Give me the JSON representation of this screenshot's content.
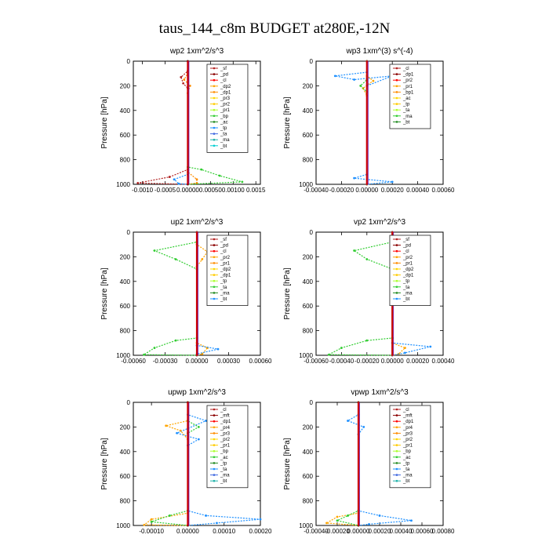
{
  "title": "taus_144_c8m  BUDGET at280E,-12N",
  "chart_data": [
    {
      "type": "line",
      "title": "wp2   1xm^2/s^3",
      "ylabel": "Pressure [hPa]",
      "xlim": [
        -0.0012,
        0.0016
      ],
      "ylim": [
        1000,
        0
      ],
      "xticks": [
        "-0.0010",
        "-0.0005",
        "0.00000",
        "0.00050",
        "0.00100",
        "0.0015"
      ],
      "xtick_values": [
        -0.001,
        -0.0005,
        0,
        0.0005,
        0.001,
        0.0015
      ],
      "yticks": [
        0,
        200,
        400,
        600,
        800,
        1000
      ],
      "legend_position": "top-right",
      "legend": [
        "_sf",
        "_pd",
        "_cl",
        "_dp2",
        "_dp1",
        "_pr3",
        "_pr2",
        "_pr1",
        "_bp",
        "_ac",
        "_tp",
        "_ta",
        "_ma",
        "_bt"
      ],
      "series": [
        {
          "name": "_pd",
          "color": "#b22222",
          "points": [
            [
              0,
              0
            ],
            [
              0,
              80
            ],
            [
              -0.00015,
              130
            ],
            [
              -0.0001,
              180
            ],
            [
              0,
              220
            ],
            [
              0,
              880
            ],
            [
              -0.0004,
              940
            ],
            [
              -0.0011,
              990
            ],
            [
              0,
              1000
            ]
          ]
        },
        {
          "name": "_dp2",
          "color": "#ff8c00",
          "points": [
            [
              0,
              0
            ],
            [
              0,
              100
            ],
            [
              -8e-05,
              150
            ],
            [
              5e-05,
              200
            ],
            [
              0,
              260
            ],
            [
              0,
              900
            ],
            [
              0.0002,
              960
            ],
            [
              0.0002,
              990
            ],
            [
              0,
              1000
            ]
          ]
        },
        {
          "name": "_bp",
          "color": "#32cd32",
          "points": [
            [
              0,
              0
            ],
            [
              0,
              860
            ],
            [
              0.0003,
              880
            ],
            [
              0.0007,
              930
            ],
            [
              0.0012,
              980
            ],
            [
              0,
              1000
            ]
          ]
        },
        {
          "name": "_tp",
          "color": "#1e90ff",
          "points": [
            [
              0,
              0
            ],
            [
              0,
              920
            ],
            [
              -0.0003,
              960
            ],
            [
              -0.0002,
              995
            ],
            [
              0,
              1000
            ]
          ]
        },
        {
          "name": "_cl",
          "color": "#8b0000",
          "points": [
            [
              0,
              0
            ],
            [
              0,
              1000
            ]
          ]
        }
      ]
    },
    {
      "type": "line",
      "title": "wp3   1xm^(3) s^(-4)",
      "ylabel": "Pressure [hPa]",
      "xlim": [
        -0.0004,
        0.0006
      ],
      "ylim": [
        1000,
        0
      ],
      "xticks": [
        "-0.00040",
        "-0.00020",
        "0.00000",
        "0.00020",
        "0.00040",
        "0.00060"
      ],
      "xtick_values": [
        -0.0004,
        -0.0002,
        0,
        0.0002,
        0.0004,
        0.0006
      ],
      "yticks": [
        0,
        200,
        400,
        600,
        800,
        1000
      ],
      "legend_position": "top-right",
      "legend": [
        "_cl",
        "_dp1",
        "_pr2",
        "_pr1",
        "_bp1",
        "_ac",
        "_tp",
        "_ta",
        "_ma",
        "_bt"
      ],
      "series": [
        {
          "name": "_tp",
          "color": "#1e90ff",
          "points": [
            [
              0,
              0
            ],
            [
              0,
              90
            ],
            [
              -0.00025,
              120
            ],
            [
              -0.0001,
              150
            ],
            [
              0.0002,
              120
            ],
            [
              0,
              200
            ],
            [
              0,
              920
            ],
            [
              -0.0001,
              950
            ],
            [
              0.0002,
              980
            ],
            [
              0,
              1000
            ]
          ]
        },
        {
          "name": "_pr2",
          "color": "#ffa500",
          "points": [
            [
              0,
              0
            ],
            [
              0,
              120
            ],
            [
              5e-05,
              160
            ],
            [
              -3e-05,
              220
            ],
            [
              0,
              280
            ],
            [
              0,
              1000
            ]
          ]
        },
        {
          "name": "_ac",
          "color": "#32cd32",
          "points": [
            [
              0,
              0
            ],
            [
              0,
              150
            ],
            [
              -5e-05,
              200
            ],
            [
              0,
              250
            ],
            [
              0,
              1000
            ]
          ]
        },
        {
          "name": "_cl",
          "color": "#b22222",
          "points": [
            [
              0,
              0
            ],
            [
              0,
              1000
            ]
          ]
        }
      ]
    },
    {
      "type": "line",
      "title": "up2   1xm^2/s^3",
      "ylabel": "Pressure [hPa]",
      "xlim": [
        -0.0006,
        0.0006
      ],
      "ylim": [
        1000,
        0
      ],
      "xticks": [
        "-0.00060",
        "-0.00030",
        "0.00000",
        "0.00030",
        "0.00060"
      ],
      "xtick_values": [
        -0.0006,
        -0.0003,
        0,
        0.0003,
        0.0006
      ],
      "yticks": [
        0,
        200,
        400,
        600,
        800,
        1000
      ],
      "legend_position": "top-right",
      "legend": [
        "_sf",
        "_pd",
        "_cl",
        "_pr2",
        "_pr1",
        "_dp2",
        "_dp1",
        "_tp",
        "_ta",
        "_ma",
        "_bt"
      ],
      "series": [
        {
          "name": "_bp",
          "color": "#32cd32",
          "points": [
            [
              0,
              0
            ],
            [
              0,
              80
            ],
            [
              -0.0004,
              150
            ],
            [
              -0.0002,
              220
            ],
            [
              0,
              300
            ],
            [
              0,
              860
            ],
            [
              -0.0002,
              880
            ],
            [
              -0.0004,
              940
            ],
            [
              -0.0005,
              995
            ],
            [
              0,
              1000
            ]
          ]
        },
        {
          "name": "_pr2",
          "color": "#ffa500",
          "points": [
            [
              0,
              0
            ],
            [
              0,
              100
            ],
            [
              0.0001,
              160
            ],
            [
              5e-05,
              220
            ],
            [
              0,
              280
            ],
            [
              0,
              900
            ],
            [
              0.0001,
              940
            ],
            [
              5e-05,
              990
            ],
            [
              0,
              1000
            ]
          ]
        },
        {
          "name": "_tp",
          "color": "#1e90ff",
          "points": [
            [
              0,
              0
            ],
            [
              0,
              920
            ],
            [
              0.0002,
              950
            ],
            [
              0,
              990
            ],
            [
              0,
              1000
            ]
          ]
        },
        {
          "name": "_pd",
          "color": "#b22222",
          "points": [
            [
              0,
              0
            ],
            [
              0,
              1000
            ]
          ]
        }
      ]
    },
    {
      "type": "line",
      "title": "vp2   1xm^2/s^3",
      "ylabel": "Pressure [hPa]",
      "xlim": [
        -0.0006,
        0.0004
      ],
      "ylim": [
        1000,
        0
      ],
      "xticks": [
        "-0.00060",
        "-0.00040",
        "-0.00020",
        "0.00000",
        "0.00020",
        "0.00040"
      ],
      "xtick_values": [
        -0.0006,
        -0.0004,
        -0.0002,
        0,
        0.0002,
        0.0004
      ],
      "yticks": [
        0,
        200,
        400,
        600,
        800,
        1000
      ],
      "legend_position": "top-right",
      "legend": [
        "_sf",
        "_pd",
        "_cl",
        "_pr2",
        "_pr1",
        "_dp2",
        "_dp1",
        "_tp",
        "_ta",
        "_ma",
        "_bt"
      ],
      "series": [
        {
          "name": "_bp",
          "color": "#32cd32",
          "points": [
            [
              0,
              0
            ],
            [
              0,
              80
            ],
            [
              -0.0003,
              150
            ],
            [
              -0.0002,
              220
            ],
            [
              0,
              300
            ],
            [
              0,
              860
            ],
            [
              -0.0002,
              880
            ],
            [
              -0.0004,
              940
            ],
            [
              -0.0005,
              995
            ],
            [
              0,
              1000
            ]
          ]
        },
        {
          "name": "_pr2",
          "color": "#ffa500",
          "points": [
            [
              0,
              0
            ],
            [
              0,
              100
            ],
            [
              0.0001,
              160
            ],
            [
              5e-05,
              220
            ],
            [
              0,
              280
            ],
            [
              0,
              900
            ],
            [
              0.0001,
              940
            ],
            [
              5e-05,
              990
            ],
            [
              0,
              1000
            ]
          ]
        },
        {
          "name": "_tp",
          "color": "#1e90ff",
          "points": [
            [
              0,
              0
            ],
            [
              0,
              900
            ],
            [
              0.0003,
              930
            ],
            [
              0.0001,
              980
            ],
            [
              0,
              1000
            ]
          ]
        },
        {
          "name": "_pd",
          "color": "#b22222",
          "points": [
            [
              0,
              0
            ],
            [
              0,
              1000
            ]
          ]
        }
      ]
    },
    {
      "type": "line",
      "title": "upwp   1xm^2/s^3",
      "ylabel": "Pressure [hPa]",
      "xlim": [
        -0.00015,
        0.0002
      ],
      "ylim": [
        1000,
        0
      ],
      "xticks": [
        "-0.00010",
        "0.00000",
        "0.00010",
        "0.00020"
      ],
      "xtick_values": [
        -0.0001,
        0,
        0.0001,
        0.0002
      ],
      "yticks": [
        0,
        200,
        400,
        600,
        800,
        1000
      ],
      "legend_position": "top-right",
      "legend": [
        "_cl",
        "_mft",
        "_dp1",
        "_pr4",
        "_pr3",
        "_pr2",
        "_pr1",
        "_bp",
        "_ac",
        "_tp",
        "_ta",
        "_ma",
        "_bt"
      ],
      "series": [
        {
          "name": "_tp",
          "color": "#1e90ff",
          "points": [
            [
              0,
              0
            ],
            [
              0,
              100
            ],
            [
              5e-05,
              150
            ],
            [
              -3e-05,
              250
            ],
            [
              3e-05,
              300
            ],
            [
              0,
              350
            ],
            [
              0,
              880
            ],
            [
              5e-05,
              920
            ],
            [
              0.0002,
              950
            ],
            [
              8e-05,
              980
            ],
            [
              0,
              1000
            ]
          ]
        },
        {
          "name": "_pr2",
          "color": "#ffa500",
          "points": [
            [
              0,
              0
            ],
            [
              0,
              150
            ],
            [
              -6e-05,
              190
            ],
            [
              -2e-05,
              230
            ],
            [
              0,
              300
            ],
            [
              0,
              900
            ],
            [
              -0.0001,
              950
            ],
            [
              -0.00012,
              995
            ],
            [
              0,
              1000
            ]
          ]
        },
        {
          "name": "_bp",
          "color": "#32cd32",
          "points": [
            [
              0,
              0
            ],
            [
              0,
              150
            ],
            [
              3e-05,
              200
            ],
            [
              0,
              250
            ],
            [
              0,
              880
            ],
            [
              -5e-05,
              920
            ],
            [
              -0.0001,
              970
            ],
            [
              0,
              1000
            ]
          ]
        },
        {
          "name": "_cl",
          "color": "#8b0000",
          "points": [
            [
              0,
              0
            ],
            [
              0,
              1000
            ]
          ]
        }
      ]
    },
    {
      "type": "line",
      "title": "vpwp   1xm^2/s^3",
      "ylabel": "Pressure [hPa]",
      "xlim": [
        -0.0004,
        0.0008
      ],
      "ylim": [
        1000,
        0
      ],
      "xticks": [
        "-0.00040",
        "-0.00020",
        "0.00000",
        "0.00020",
        "0.00040",
        "0.00060",
        "0.00080"
      ],
      "xtick_values": [
        -0.0004,
        -0.0002,
        0,
        0.0002,
        0.0004,
        0.0006,
        0.0008
      ],
      "yticks": [
        0,
        200,
        400,
        600,
        800,
        1000
      ],
      "legend_position": "top-right",
      "legend": [
        "_cl",
        "_mft",
        "_dp1",
        "_pr4",
        "_pr3",
        "_pr2",
        "_pr1",
        "_bp",
        "_ac",
        "_tp",
        "_ta",
        "_ma",
        "_bt"
      ],
      "series": [
        {
          "name": "_tp",
          "color": "#1e90ff",
          "points": [
            [
              0,
              0
            ],
            [
              0,
              100
            ],
            [
              -0.0001,
              150
            ],
            [
              5e-05,
              200
            ],
            [
              0,
              260
            ],
            [
              0,
              880
            ],
            [
              0.0002,
              920
            ],
            [
              0.0005,
              960
            ],
            [
              0.0001,
              990
            ],
            [
              0,
              1000
            ]
          ]
        },
        {
          "name": "_pr2",
          "color": "#ffa500",
          "points": [
            [
              0,
              0
            ],
            [
              0,
              900
            ],
            [
              -0.0002,
              930
            ],
            [
              -0.0003,
              980
            ],
            [
              0,
              1000
            ]
          ]
        },
        {
          "name": "_bp",
          "color": "#32cd32",
          "points": [
            [
              0,
              0
            ],
            [
              0,
              880
            ],
            [
              -0.0001,
              920
            ],
            [
              -0.0002,
              960
            ],
            [
              0,
              1000
            ]
          ]
        },
        {
          "name": "_cl",
          "color": "#8b0000",
          "points": [
            [
              0,
              0
            ],
            [
              0,
              1000
            ]
          ]
        }
      ]
    }
  ],
  "legend_colors": [
    "#b22222",
    "#8b0000",
    "#ff0000",
    "#ffa500",
    "#ff8c00",
    "#ffd700",
    "#ffcc00",
    "#adff2f",
    "#32cd32",
    "#228b22",
    "#1e90ff",
    "#4169e1",
    "#20b2aa",
    "#00ced1"
  ]
}
